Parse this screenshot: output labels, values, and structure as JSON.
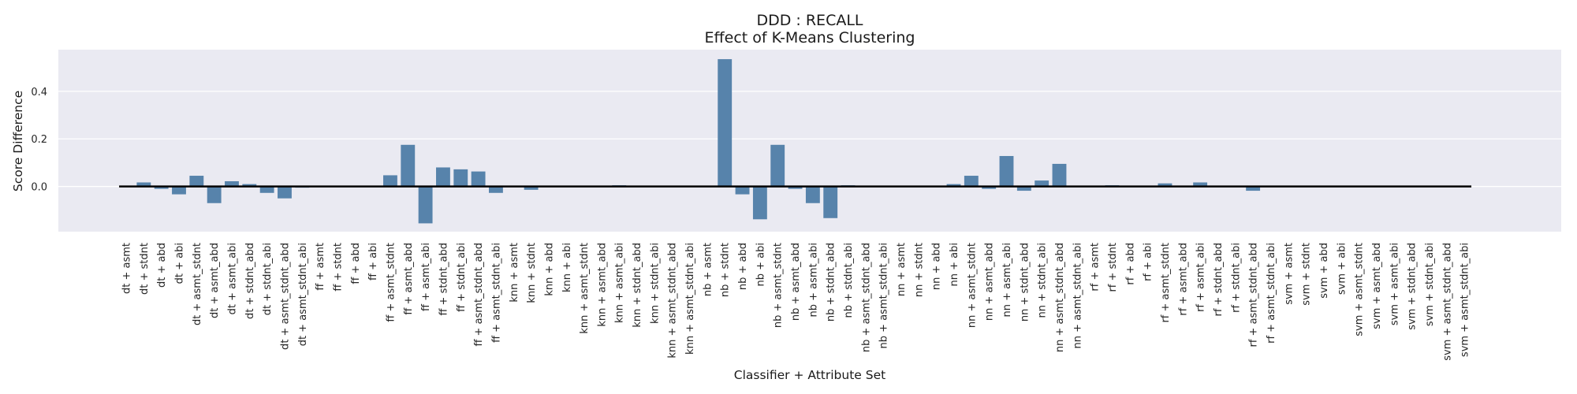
{
  "chart_data": {
    "type": "bar",
    "title": "DDD : RECALL",
    "subtitle": "Effect of K-Means Clustering",
    "xlabel": "Classifier + Attribute Set",
    "ylabel": "Score Difference",
    "ylim": [
      -0.19,
      0.575
    ],
    "yticks": [
      0.0,
      0.2,
      0.4
    ],
    "ytick_labels": [
      "0.0",
      "0.2",
      "0.4"
    ],
    "grid": true,
    "bar_color": "#5783ab",
    "background_color": "#eaeaf2",
    "zero_line_color": "#000000",
    "categories": [
      "dt + asmt",
      "dt + stdnt",
      "dt + abd",
      "dt + abi",
      "dt + asmt_stdnt",
      "dt + asmt_abd",
      "dt + asmt_abi",
      "dt + stdnt_abd",
      "dt + stdnt_abi",
      "dt + asmt_stdnt_abd",
      "dt + asmt_stdnt_abi",
      "ff + asmt",
      "ff + stdnt",
      "ff + abd",
      "ff + abi",
      "ff + asmt_stdnt",
      "ff + asmt_abd",
      "ff + asmt_abi",
      "ff + stdnt_abd",
      "ff + stdnt_abi",
      "ff + asmt_stdnt_abd",
      "ff + asmt_stdnt_abi",
      "knn + asmt",
      "knn + stdnt",
      "knn + abd",
      "knn + abi",
      "knn + asmt_stdnt",
      "knn + asmt_abd",
      "knn + asmt_abi",
      "knn + stdnt_abd",
      "knn + stdnt_abi",
      "knn + asmt_stdnt_abd",
      "knn + asmt_stdnt_abi",
      "nb + asmt",
      "nb + stdnt",
      "nb + abd",
      "nb + abi",
      "nb + asmt_stdnt",
      "nb + asmt_abd",
      "nb + asmt_abi",
      "nb + stdnt_abd",
      "nb + stdnt_abi",
      "nb + asmt_stdnt_abd",
      "nb + asmt_stdnt_abi",
      "nn + asmt",
      "nn + stdnt",
      "nn + abd",
      "nn + abi",
      "nn + asmt_stdnt",
      "nn + asmt_abd",
      "nn + asmt_abi",
      "nn + stdnt_abd",
      "nn + stdnt_abi",
      "nn + asmt_stdnt_abd",
      "nn + asmt_stdnt_abi",
      "rf + asmt",
      "rf + stdnt",
      "rf + abd",
      "rf + abi",
      "rf + asmt_stdnt",
      "rf + asmt_abd",
      "rf + asmt_abi",
      "rf + stdnt_abd",
      "rf + stdnt_abi",
      "rf + asmt_stdnt_abd",
      "rf + asmt_stdnt_abi",
      "svm + asmt",
      "svm + stdnt",
      "svm + abd",
      "svm + abi",
      "svm + asmt_stdnt",
      "svm + asmt_abd",
      "svm + asmt_abi",
      "svm + stdnt_abd",
      "svm + stdnt_abi",
      "svm + asmt_stdnt_abd",
      "svm + asmt_stdnt_abi"
    ],
    "values": [
      0.0,
      0.017,
      -0.01,
      -0.033,
      0.045,
      -0.07,
      0.022,
      0.01,
      -0.027,
      -0.05,
      -0.005,
      0.0,
      0.0,
      0.0,
      0.0,
      0.047,
      0.175,
      -0.155,
      0.08,
      0.072,
      0.063,
      -0.027,
      0.0,
      -0.014,
      0.0,
      0.0,
      0.0,
      0.0,
      0.005,
      0.0,
      0.0,
      0.0,
      0.0,
      0.0,
      0.535,
      -0.033,
      -0.138,
      0.175,
      -0.01,
      -0.07,
      -0.133,
      0.005,
      0.0,
      0.0,
      0.0,
      0.0,
      0.0,
      0.01,
      0.045,
      -0.01,
      0.128,
      -0.018,
      0.025,
      0.095,
      0.0,
      0.0,
      0.005,
      0.0,
      0.0,
      0.013,
      0.0,
      0.017,
      0.0,
      0.0,
      -0.018,
      0.0,
      0.0,
      0.0,
      0.0,
      0.0,
      0.0,
      0.0,
      0.0,
      0.0,
      0.0,
      0.0,
      0.0
    ]
  }
}
